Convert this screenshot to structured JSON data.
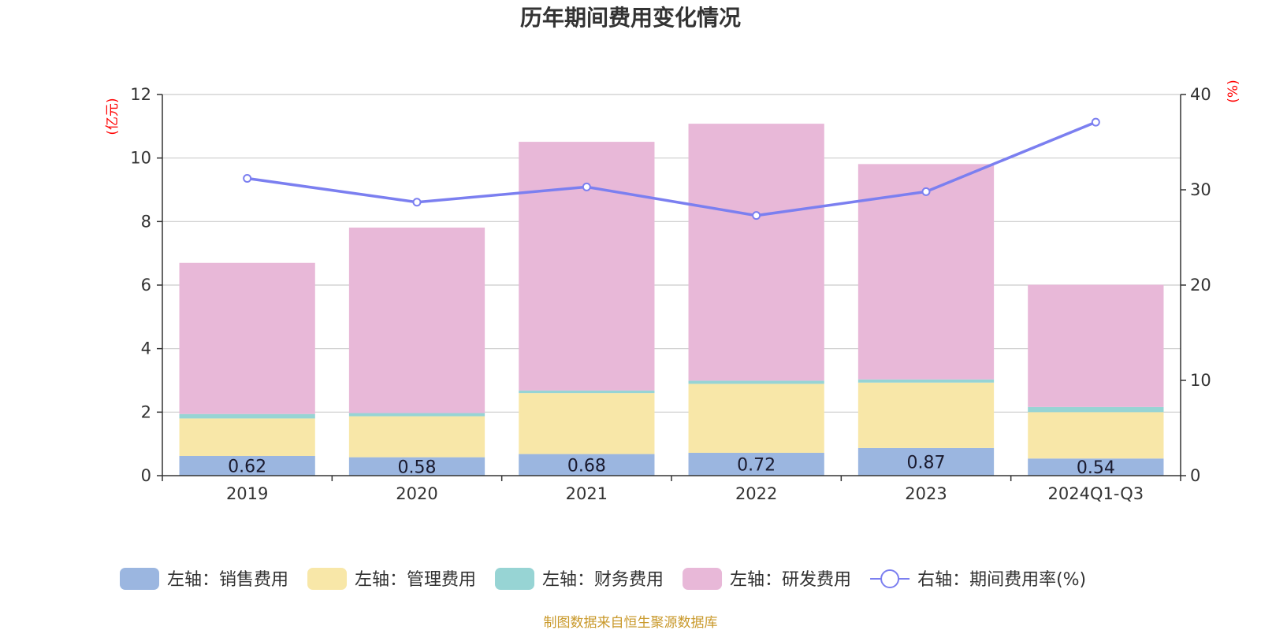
{
  "chart_data": {
    "type": "bar",
    "stacked": true,
    "title": "历年期间费用变化情况",
    "categories": [
      "2019",
      "2020",
      "2021",
      "2022",
      "2023",
      "2024Q1-Q3"
    ],
    "series": [
      {
        "name": "左轴：销售费用",
        "axis": "left",
        "color": "#9bb6e0",
        "values": [
          0.62,
          0.58,
          0.68,
          0.72,
          0.87,
          0.54
        ],
        "labels": [
          "0.62",
          "0.58",
          "0.68",
          "0.72",
          "0.87",
          "0.54"
        ]
      },
      {
        "name": "左轴：管理费用",
        "axis": "left",
        "color": "#f8e7a8",
        "values": [
          1.18,
          1.29,
          1.92,
          2.17,
          2.06,
          1.46
        ]
      },
      {
        "name": "左轴：财务费用",
        "axis": "left",
        "color": "#97d4d4",
        "values": [
          0.14,
          0.1,
          0.08,
          0.1,
          0.1,
          0.16
        ]
      },
      {
        "name": "左轴：研发费用",
        "axis": "left",
        "color": "#e8b8d8",
        "values": [
          4.76,
          5.84,
          7.83,
          8.09,
          6.78,
          3.85
        ]
      },
      {
        "name": "右轴：期间费用率(%)",
        "axis": "right",
        "type": "line",
        "color": "#7b7ff0",
        "values": [
          31.2,
          28.7,
          30.3,
          27.3,
          29.8,
          37.1
        ]
      }
    ],
    "left_axis": {
      "unit": "(亿元)",
      "min": 0,
      "max": 12,
      "ticks": [
        "0",
        "2",
        "4",
        "6",
        "8",
        "10",
        "12"
      ]
    },
    "right_axis": {
      "unit": "(%)",
      "min": 0,
      "max": 40,
      "ticks": [
        "0",
        "10",
        "20",
        "30",
        "40"
      ]
    },
    "grid": true,
    "legend_position": "bottom"
  },
  "source": "制图数据来自恒生聚源数据库"
}
